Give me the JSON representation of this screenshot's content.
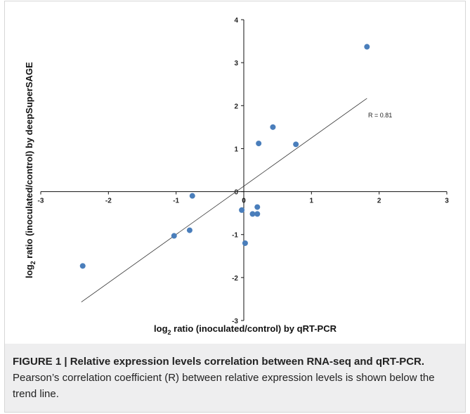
{
  "figure": {
    "caption_label": "FIGURE 1 | Relative expression levels correlation between RNA-seq and qRT-PCR.",
    "caption_text": "Pearson’s correlation coefficient (R) between relative expression levels is shown below the trend line."
  },
  "chart_data": {
    "type": "scatter",
    "xlabel_prefix": "log",
    "xlabel_sub": "2",
    "xlabel_rest": " ratio (inoculated/control) by qRT-PCR",
    "ylabel_prefix": "log",
    "ylabel_sub": "2",
    "ylabel_rest": " ratio (inoculated/control) by deepSuperSAGE",
    "xlim": [
      -3,
      3
    ],
    "ylim": [
      -3,
      4
    ],
    "x_ticks": [
      -3,
      -2,
      -1,
      0,
      1,
      2,
      3
    ],
    "y_ticks": [
      -3,
      -2,
      -1,
      0,
      1,
      2,
      3,
      4
    ],
    "series": [
      {
        "color": "#4a7ebb",
        "points": [
          {
            "x": -2.38,
            "y": -1.73
          },
          {
            "x": -1.03,
            "y": -1.03
          },
          {
            "x": -0.8,
            "y": -0.9
          },
          {
            "x": -0.76,
            "y": -0.1
          },
          {
            "x": -0.03,
            "y": -0.43
          },
          {
            "x": 0.02,
            "y": -1.2
          },
          {
            "x": 0.13,
            "y": -0.52
          },
          {
            "x": 0.2,
            "y": -0.36
          },
          {
            "x": 0.2,
            "y": -0.52
          },
          {
            "x": 0.22,
            "y": 1.12
          },
          {
            "x": 0.43,
            "y": 1.5
          },
          {
            "x": 0.77,
            "y": 1.1
          },
          {
            "x": 1.82,
            "y": 3.37
          }
        ]
      }
    ],
    "trendline": {
      "x": [
        -2.4,
        1.82
      ],
      "y": [
        -2.57,
        2.17
      ]
    },
    "annotation": "R = 0.81"
  }
}
